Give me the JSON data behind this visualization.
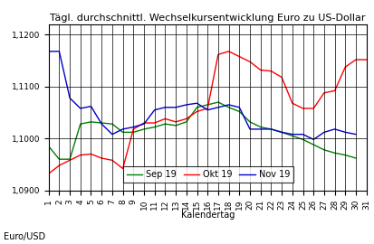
{
  "title": "Tägl. durchschnittl. Wechselkursentwicklung Euro zu US-Dollar",
  "xlabel": "Kalendertag",
  "ylabel": "Euro/USD",
  "xlim": [
    1,
    31
  ],
  "ylim": [
    1.09,
    1.122
  ],
  "xticks": [
    1,
    2,
    3,
    4,
    5,
    6,
    7,
    8,
    9,
    10,
    11,
    12,
    13,
    14,
    15,
    16,
    17,
    18,
    19,
    20,
    21,
    22,
    23,
    24,
    25,
    26,
    27,
    28,
    29,
    30,
    31
  ],
  "ytick_vals": [
    1.09,
    1.1,
    1.11,
    1.12
  ],
  "ytick_labels": [
    "1,0900",
    "1,1000",
    "1,1100",
    "1,1200"
  ],
  "sep19_x": [
    1,
    2,
    3,
    4,
    5,
    6,
    7,
    8,
    9,
    10,
    11,
    12,
    13,
    14,
    15,
    16,
    17,
    18,
    19,
    20,
    21,
    22,
    23,
    24,
    25,
    26,
    27,
    28,
    29,
    30
  ],
  "sep19_y": [
    1.0985,
    1.096,
    1.096,
    1.1028,
    1.1032,
    1.103,
    1.1028,
    1.1012,
    1.1012,
    1.1018,
    1.1022,
    1.1028,
    1.1025,
    1.1032,
    1.106,
    1.1065,
    1.107,
    1.106,
    1.1052,
    1.1032,
    1.1022,
    1.1018,
    1.1012,
    1.1005,
    1.0998,
    1.0988,
    1.0978,
    1.0972,
    1.0968,
    1.0962
  ],
  "okt19_x": [
    1,
    2,
    3,
    4,
    5,
    6,
    7,
    8,
    9,
    10,
    11,
    12,
    13,
    14,
    15,
    16,
    17,
    18,
    19,
    20,
    21,
    22,
    23,
    24,
    25,
    26,
    27,
    28,
    29,
    30,
    31
  ],
  "okt19_y": [
    1.0932,
    1.0948,
    1.0958,
    1.0968,
    1.097,
    1.0962,
    1.0958,
    1.0942,
    1.1018,
    1.103,
    1.103,
    1.1038,
    1.1032,
    1.1038,
    1.1052,
    1.1058,
    1.1162,
    1.1168,
    1.1158,
    1.1148,
    1.1132,
    1.113,
    1.1118,
    1.1068,
    1.1058,
    1.1058,
    1.1088,
    1.1092,
    1.1138,
    1.1152,
    1.1152
  ],
  "nov19_x": [
    1,
    2,
    3,
    4,
    5,
    6,
    7,
    8,
    9,
    10,
    11,
    12,
    13,
    14,
    15,
    16,
    17,
    18,
    19,
    20,
    21,
    22,
    23,
    24,
    25,
    26,
    27,
    28,
    29,
    30
  ],
  "nov19_y": [
    1.1168,
    1.1168,
    1.1078,
    1.1058,
    1.1062,
    1.1028,
    1.1008,
    1.1018,
    1.1022,
    1.1028,
    1.1055,
    1.106,
    1.106,
    1.1065,
    1.1068,
    1.1055,
    1.106,
    1.1065,
    1.106,
    1.1018,
    1.1018,
    1.1018,
    1.1012,
    1.1008,
    1.1008,
    1.0998,
    1.1012,
    1.1018,
    1.1012,
    1.1008
  ],
  "sep19_color": "#008000",
  "okt19_color": "#ff0000",
  "nov19_color": "#0000cc",
  "legend_labels": [
    "Sep 19",
    "Okt 19",
    "Nov 19"
  ],
  "bg_color": "#ffffff",
  "grid_color": "#000000",
  "title_fontsize": 8,
  "axis_fontsize": 7,
  "tick_fontsize": 6.5,
  "legend_fontsize": 7,
  "linewidth": 1.0
}
